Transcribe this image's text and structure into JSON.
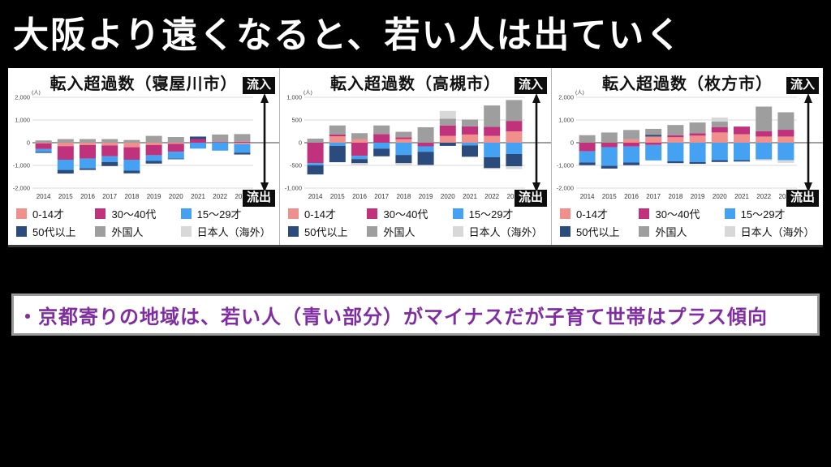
{
  "title": "大阪より遠くなると、若い人は出ていく",
  "note": "・京都寄りの地域は、若い人（青い部分）がマイナスだが子育て世帯はプラス傾向",
  "labels": {
    "inflow": "流入",
    "outflow": "流出",
    "unit": "(人)"
  },
  "colors": {
    "age0_14": "#F0908D",
    "age30_40": "#C0337C",
    "age15_29": "#45A1F2",
    "age50plus": "#2C4B7D",
    "foreigner": "#9E9E9E",
    "japanese_overseas": "#D8D8D8"
  },
  "legend": [
    {
      "key": "age0_14",
      "label": "0-14才",
      "color": "#F0908D"
    },
    {
      "key": "age30_40",
      "label": "30～40代",
      "color": "#C0337C"
    },
    {
      "key": "age15_29",
      "label": "15～29才",
      "color": "#45A1F2"
    },
    {
      "key": "age50plus",
      "label": "50代以上",
      "color": "#2C4B7D"
    },
    {
      "key": "foreigner",
      "label": "外国人",
      "color": "#9E9E9E"
    },
    {
      "key": "japanese_overseas",
      "label": "日本人（海外）",
      "color": "#D8D8D8"
    }
  ],
  "stack_order": [
    "age0_14",
    "age30_40",
    "age15_29",
    "age50plus",
    "foreigner",
    "japanese_overseas"
  ],
  "chart_data": [
    {
      "type": "bar",
      "stacked": true,
      "title": "転入超過数（寝屋川市）",
      "ylabel": "(人)",
      "ticks": [
        2000,
        1000,
        0,
        -1000,
        -2000
      ],
      "tick_labels": [
        "2,000",
        "1,000",
        "0",
        "-1,000",
        "-2,000"
      ],
      "x": [
        "2014",
        "2015",
        "2016",
        "2017",
        "2018",
        "2019",
        "2020",
        "2021",
        "2022",
        "2023"
      ],
      "series": [
        {
          "key": "age0_14",
          "name": "0-14才",
          "values": [
            -30,
            -150,
            -100,
            -120,
            -200,
            -100,
            -50,
            0,
            0,
            -60
          ]
        },
        {
          "key": "age30_40",
          "name": "30～40代",
          "values": [
            -250,
            -600,
            -600,
            -480,
            -550,
            -450,
            -350,
            160,
            30,
            40
          ]
        },
        {
          "key": "age15_29",
          "name": "15～29才",
          "values": [
            -130,
            -450,
            -430,
            -250,
            -480,
            -250,
            -300,
            -260,
            -350,
            -380
          ]
        },
        {
          "key": "age50plus",
          "name": "50代以上",
          "values": [
            -40,
            -160,
            -70,
            -180,
            -120,
            -120,
            -30,
            110,
            0,
            -80
          ]
        },
        {
          "key": "foreigner",
          "name": "外国人",
          "values": [
            100,
            160,
            160,
            160,
            120,
            300,
            250,
            0,
            330,
            340
          ]
        },
        {
          "key": "japanese_overseas",
          "name": "日本人（海外）",
          "values": [
            0,
            0,
            0,
            0,
            0,
            0,
            0,
            0,
            0,
            0
          ]
        }
      ]
    },
    {
      "type": "bar",
      "stacked": true,
      "title": "転入超過数（高槻市）",
      "ylabel": "(人)",
      "ticks": [
        1000,
        500,
        0,
        -500,
        -1000
      ],
      "tick_labels": [
        "1,000",
        "500",
        "0",
        "-500",
        "-1,000"
      ],
      "x": [
        "2014",
        "2015",
        "2016",
        "2017",
        "2018",
        "2019",
        "2020",
        "2021",
        "2022",
        "2023"
      ],
      "series": [
        {
          "key": "age0_14",
          "name": "0-14才",
          "values": [
            0,
            140,
            80,
            0,
            80,
            0,
            150,
            180,
            150,
            250
          ]
        },
        {
          "key": "age30_40",
          "name": "30～40代",
          "values": [
            -450,
            40,
            -290,
            190,
            40,
            -80,
            230,
            180,
            200,
            230
          ]
        },
        {
          "key": "age15_29",
          "name": "15～29才",
          "values": [
            -50,
            -70,
            -70,
            -130,
            -270,
            -120,
            0,
            -60,
            -320,
            -250
          ]
        },
        {
          "key": "age50plus",
          "name": "50代以上",
          "values": [
            -200,
            -360,
            -90,
            -170,
            -180,
            -290,
            -70,
            -250,
            -240,
            -270
          ]
        },
        {
          "key": "foreigner",
          "name": "外国人",
          "values": [
            90,
            200,
            130,
            190,
            120,
            340,
            150,
            150,
            470,
            460
          ]
        },
        {
          "key": "japanese_overseas",
          "name": "日本人（海外）",
          "values": [
            0,
            0,
            -50,
            0,
            -60,
            0,
            170,
            0,
            -20,
            -60
          ]
        }
      ]
    },
    {
      "type": "bar",
      "stacked": true,
      "title": "転入超過数（枚方市）",
      "ylabel": "(人)",
      "ticks": [
        2000,
        1000,
        0,
        -1000,
        -2000
      ],
      "tick_labels": [
        "2,000",
        "1,000",
        "0",
        "-1,000",
        "-2,000"
      ],
      "x": [
        "2014",
        "2015",
        "2016",
        "2017",
        "2018",
        "2019",
        "2020",
        "2021",
        "2022",
        "2023"
      ],
      "series": [
        {
          "key": "age0_14",
          "name": "0-14才",
          "values": [
            0,
            0,
            150,
            270,
            240,
            310,
            450,
            370,
            270,
            270
          ]
        },
        {
          "key": "age30_40",
          "name": "30～40代",
          "values": [
            -380,
            -200,
            -170,
            -100,
            90,
            110,
            240,
            340,
            240,
            300
          ]
        },
        {
          "key": "age15_29",
          "name": "15～29才",
          "values": [
            -490,
            -820,
            -700,
            -680,
            -820,
            -850,
            -770,
            -770,
            -730,
            -770
          ]
        },
        {
          "key": "age50plus",
          "name": "50代以上",
          "values": [
            -120,
            -120,
            -120,
            80,
            -80,
            -80,
            -80,
            -60,
            0,
            0
          ]
        },
        {
          "key": "foreigner",
          "name": "外国人",
          "values": [
            330,
            450,
            410,
            260,
            450,
            470,
            240,
            0,
            1080,
            770
          ]
        },
        {
          "key": "japanese_overseas",
          "name": "日本人（海外）",
          "values": [
            0,
            0,
            0,
            0,
            0,
            0,
            180,
            0,
            -60,
            -120
          ]
        }
      ]
    }
  ]
}
